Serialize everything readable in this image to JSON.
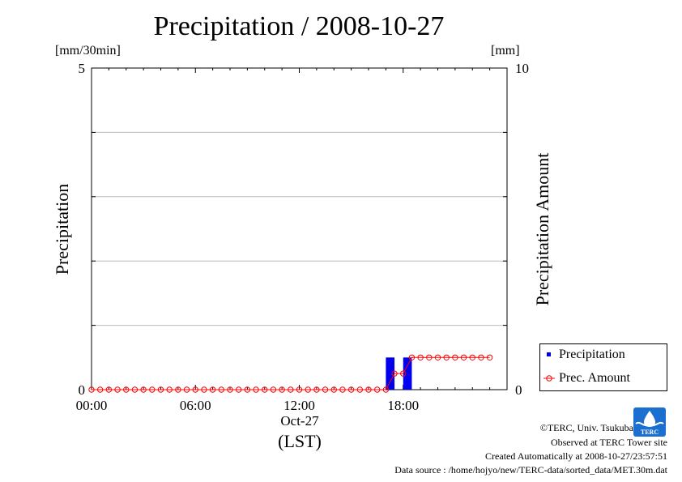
{
  "chart_data": {
    "type": "bar+line",
    "title": "Precipitation / 2008-10-27",
    "left_axis": {
      "label": "Precipitation",
      "unit": "[mm/30min]",
      "ylim": [
        0,
        5
      ],
      "ticks": [
        0,
        5
      ],
      "tick_labels": [
        "0",
        "5"
      ]
    },
    "right_axis": {
      "label": "Precipitation Amount",
      "unit": "[mm]",
      "ylim": [
        0,
        10
      ],
      "ticks": [
        0,
        10
      ],
      "tick_labels": [
        "0",
        "10"
      ]
    },
    "x_axis": {
      "range_hours": [
        0,
        24
      ],
      "ticks": [
        0,
        6,
        12,
        18
      ],
      "tick_labels": [
        "00:00",
        "06:00",
        "12:00",
        "18:00"
      ],
      "date_label": "Oct-27",
      "zone_label": "(LST)"
    },
    "grid": "horizontal",
    "legend_position": "bottom-right",
    "series": [
      {
        "name": "Precipitation",
        "kind": "bar",
        "axis": "left",
        "color": "#0000ee",
        "x_hours": [
          17.0,
          18.0
        ],
        "values": [
          0.5,
          0.5
        ]
      },
      {
        "name": "Prec. Amount",
        "kind": "line-markers",
        "axis": "right",
        "color": "#ff0000",
        "x_hours": [
          0,
          0.5,
          1,
          1.5,
          2,
          2.5,
          3,
          3.5,
          4,
          4.5,
          5,
          5.5,
          6,
          6.5,
          7,
          7.5,
          8,
          8.5,
          9,
          9.5,
          10,
          10.5,
          11,
          11.5,
          12,
          12.5,
          13,
          13.5,
          14,
          14.5,
          15,
          15.5,
          16,
          16.5,
          17,
          17.5,
          18,
          18.5,
          19,
          19.5,
          20,
          20.5,
          21,
          21.5,
          22,
          22.5,
          23
        ],
        "values": [
          0,
          0,
          0,
          0,
          0,
          0,
          0,
          0,
          0,
          0,
          0,
          0,
          0,
          0,
          0,
          0,
          0,
          0,
          0,
          0,
          0,
          0,
          0,
          0,
          0,
          0,
          0,
          0,
          0,
          0,
          0,
          0,
          0,
          0,
          0,
          0.5,
          0.5,
          1.0,
          1.0,
          1.0,
          1.0,
          1.0,
          1.0,
          1.0,
          1.0,
          1.0,
          1.0
        ]
      }
    ]
  },
  "credits": {
    "copyright": "©TERC, Univ. Tsukuba",
    "site": "Observed at TERC Tower site",
    "created": "Created Automatically at 2008-10-27/23:57:51",
    "source": "Data source : /home/hojyo/new/TERC-data/sorted_data/MET.30m.dat",
    "logo_text": "TERC"
  }
}
